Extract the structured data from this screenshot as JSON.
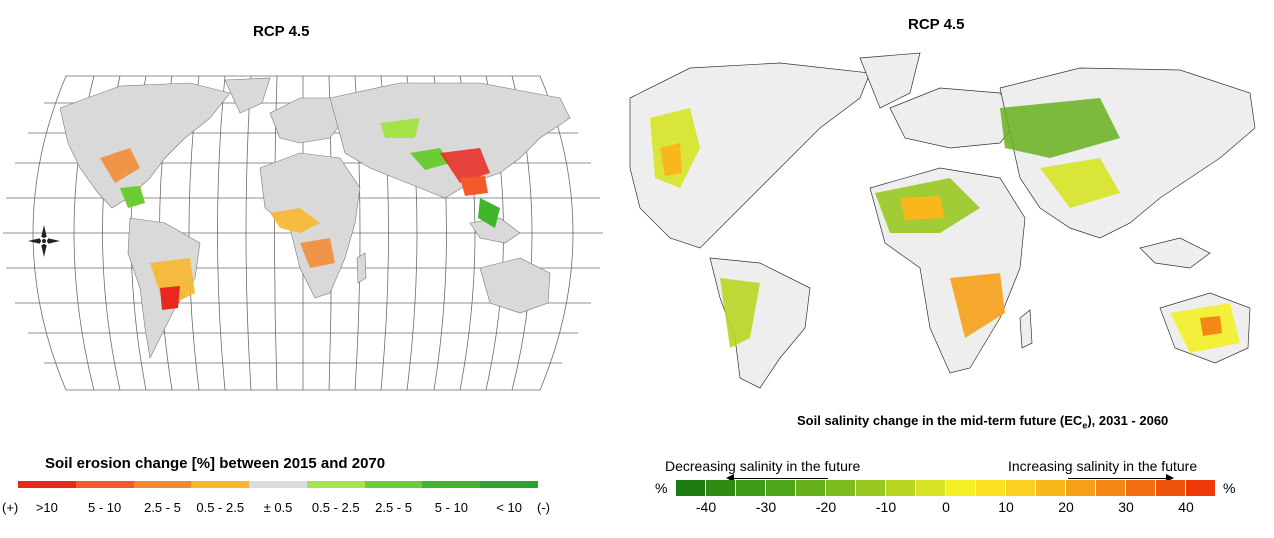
{
  "left_panel": {
    "title": "RCP 4.5",
    "legend_title": "Soil erosion change [%] between 2015 and 2070",
    "legend_colors": [
      "#e8271f",
      "#f25a2a",
      "#f3882e",
      "#f6b72c",
      "#dcdcdc",
      "#a6e24a",
      "#6ccc35",
      "#3fb62b",
      "#2aa42f"
    ],
    "legend_labels": [
      ">10",
      "5 - 10",
      "2.5 - 5",
      "0.5 - 2.5",
      "± 0.5",
      "0.5 - 2.5",
      "2.5 - 5",
      "5 - 10",
      "< 10"
    ],
    "end_left": "(+)",
    "end_right": "(-)",
    "compass_icon": "compass-rose-icon"
  },
  "right_panel": {
    "title": "RCP 4.5",
    "map_caption_main": "Soil salinity change in the mid-term future (EC",
    "map_caption_sub": "e",
    "map_caption_tail": "), 2031 - 2060",
    "decreasing_label": "Decreasing salinity in the future",
    "increasing_label": "Increasing salinity in the future",
    "unit_left": "%",
    "unit_right": "%",
    "legend_colors": [
      "#1b7a10",
      "#2f8a14",
      "#3e9a18",
      "#4fa51a",
      "#66b01c",
      "#7dbb1e",
      "#99c820",
      "#b8d522",
      "#d6e324",
      "#f2ef26",
      "#fbe324",
      "#fbd020",
      "#f8b81c",
      "#f6a018",
      "#f48814",
      "#f26e10",
      "#f0540c",
      "#ee3a08"
    ],
    "tick_labels": [
      "-40",
      "-30",
      "-20",
      "-10",
      "0",
      "10",
      "20",
      "30",
      "40"
    ]
  }
}
